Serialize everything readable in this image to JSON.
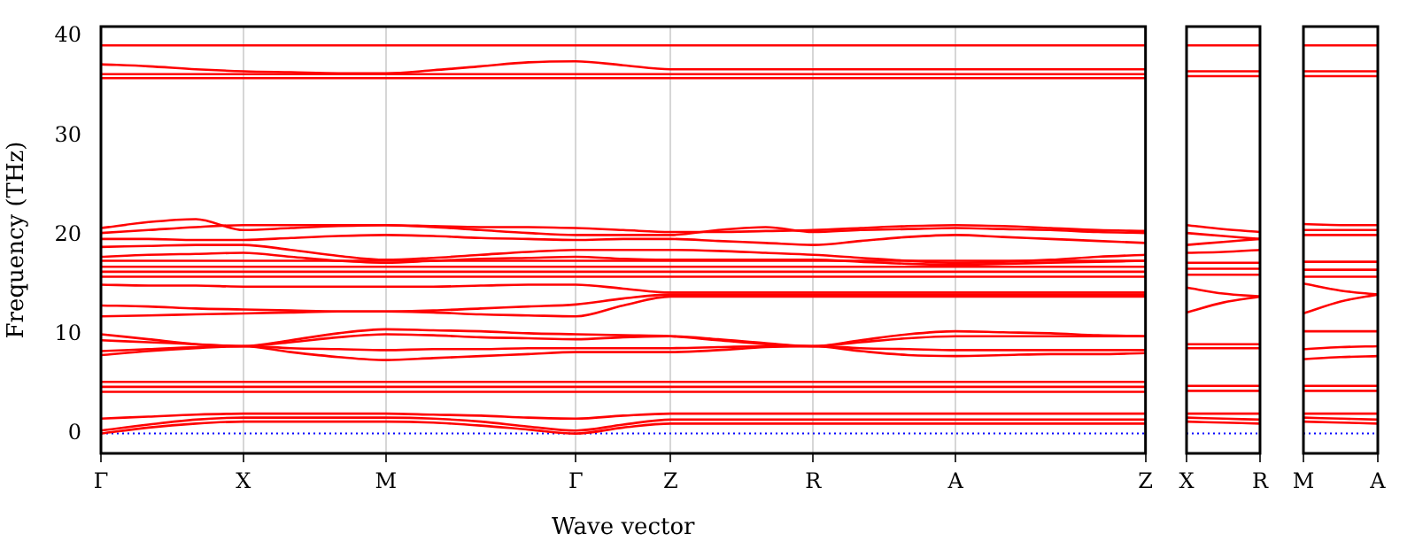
{
  "chart_data": [
    {
      "type": "line",
      "xlabel": "Wave vector",
      "ylabel": "Frequency (THz)",
      "marker": "none",
      "grid": "x",
      "categories": [
        "Γ",
        null,
        null,
        "X",
        null,
        null,
        "M",
        null,
        null,
        null,
        "Γ",
        null,
        "Z",
        null,
        null,
        "R",
        null,
        null,
        "A",
        null,
        null,
        null,
        "Z"
      ],
      "ylim": [
        -2,
        41
      ],
      "yticks": [
        0,
        10,
        20,
        30,
        40
      ],
      "ref_lines": [
        {
          "axis": "y",
          "value": 0,
          "color": "#0000ff",
          "line_style": "dotted"
        }
      ],
      "series": [
        {
          "color": "#ff0000",
          "values": [
            0,
            0.6,
            1.0,
            1.2,
            1.2,
            1.2,
            1.2,
            1.1,
            0.8,
            0.4,
            0,
            0.6,
            1.0,
            1.0,
            1.0,
            1.0,
            1.0,
            1.0,
            1.0,
            1.0,
            1.0,
            1.0,
            1.0
          ]
        },
        {
          "color": "#ff0000",
          "values": [
            0.3,
            0.9,
            1.4,
            1.6,
            1.6,
            1.6,
            1.6,
            1.5,
            1.2,
            0.7,
            0.3,
            0.9,
            1.4,
            1.4,
            1.4,
            1.4,
            1.4,
            1.4,
            1.4,
            1.4,
            1.4,
            1.4,
            1.4
          ]
        },
        {
          "color": "#ff0000",
          "values": [
            1.5,
            1.7,
            1.9,
            2.0,
            2.0,
            2.0,
            2.0,
            1.9,
            1.8,
            1.6,
            1.5,
            1.8,
            2.0,
            2.0,
            2.0,
            2.0,
            2.0,
            2.0,
            2.0,
            2.0,
            2.0,
            2.0,
            2.0
          ]
        },
        {
          "color": "#ff0000",
          "values": [
            4.2,
            4.2,
            4.2,
            4.2,
            4.2,
            4.2,
            4.2,
            4.2,
            4.2,
            4.2,
            4.2,
            4.2,
            4.2,
            4.2,
            4.2,
            4.2,
            4.2,
            4.2,
            4.2,
            4.2,
            4.2,
            4.2,
            4.2
          ]
        },
        {
          "color": "#ff0000",
          "values": [
            4.7,
            4.7,
            4.7,
            4.7,
            4.7,
            4.7,
            4.7,
            4.7,
            4.7,
            4.7,
            4.7,
            4.7,
            4.7,
            4.7,
            4.7,
            4.7,
            4.7,
            4.7,
            4.7,
            4.7,
            4.7,
            4.7,
            4.7
          ]
        },
        {
          "color": "#ff0000",
          "values": [
            5.2,
            5.2,
            5.2,
            5.2,
            5.2,
            5.2,
            5.2,
            5.2,
            5.2,
            5.2,
            5.2,
            5.2,
            5.2,
            5.2,
            5.2,
            5.2,
            5.2,
            5.2,
            5.2,
            5.2,
            5.2,
            5.2,
            5.2
          ]
        },
        {
          "color": "#ff0000",
          "values": [
            10.0,
            9.5,
            9.0,
            8.8,
            9.4,
            10.1,
            10.5,
            10.4,
            10.3,
            10.1,
            10.0,
            9.9,
            9.8,
            9.4,
            9.0,
            8.8,
            9.4,
            10.0,
            10.3,
            10.2,
            10.1,
            9.9,
            9.8
          ]
        },
        {
          "color": "#ff0000",
          "values": [
            9.4,
            9.2,
            9.0,
            8.8,
            9.2,
            9.7,
            10.0,
            9.9,
            9.7,
            9.6,
            9.5,
            9.7,
            9.8,
            9.5,
            9.1,
            8.8,
            9.2,
            9.6,
            9.8,
            9.8,
            9.8,
            9.8,
            9.8
          ]
        },
        {
          "color": "#ff0000",
          "values": [
            8.3,
            8.5,
            8.7,
            8.8,
            8.6,
            8.5,
            8.4,
            8.5,
            8.5,
            8.6,
            8.6,
            8.6,
            8.6,
            8.7,
            8.8,
            8.8,
            8.6,
            8.5,
            8.4,
            8.4,
            8.4,
            8.4,
            8.4
          ]
        },
        {
          "color": "#ff0000",
          "values": [
            7.9,
            8.3,
            8.6,
            8.8,
            8.2,
            7.7,
            7.4,
            7.6,
            7.8,
            8.0,
            8.2,
            8.2,
            8.2,
            8.4,
            8.7,
            8.8,
            8.3,
            7.9,
            7.8,
            7.9,
            8.0,
            8.0,
            8.1
          ]
        },
        {
          "color": "#ff0000",
          "values": [
            12.9,
            12.8,
            12.6,
            12.5,
            12.4,
            12.3,
            12.3,
            12.4,
            12.6,
            12.8,
            13.0,
            13.6,
            14.0,
            14.0,
            14.0,
            14.0,
            14.0,
            14.0,
            14.0,
            14.0,
            14.0,
            14.0,
            14.0
          ]
        },
        {
          "color": "#ff0000",
          "values": [
            11.8,
            11.9,
            12.0,
            12.1,
            12.2,
            12.3,
            12.3,
            12.2,
            12.0,
            11.9,
            11.8,
            12.9,
            13.8,
            13.8,
            13.8,
            13.8,
            13.8,
            13.8,
            13.8,
            13.8,
            13.8,
            13.8,
            13.8
          ]
        },
        {
          "color": "#ff0000",
          "values": [
            15.0,
            14.9,
            14.9,
            14.8,
            14.8,
            14.8,
            14.8,
            14.8,
            14.9,
            15.0,
            15.0,
            14.6,
            14.2,
            14.2,
            14.2,
            14.2,
            14.2,
            14.2,
            14.2,
            14.2,
            14.2,
            14.2,
            14.2
          ]
        },
        {
          "color": "#ff0000",
          "values": [
            15.8,
            15.8,
            15.8,
            15.8,
            15.8,
            15.8,
            15.8,
            15.8,
            15.8,
            15.8,
            15.8,
            15.8,
            15.8,
            15.8,
            15.8,
            15.8,
            15.8,
            15.8,
            15.8,
            15.8,
            15.8,
            15.8,
            15.8
          ]
        },
        {
          "color": "#ff0000",
          "values": [
            16.3,
            16.3,
            16.3,
            16.3,
            16.3,
            16.3,
            16.3,
            16.3,
            16.3,
            16.3,
            16.3,
            16.3,
            16.3,
            16.3,
            16.3,
            16.3,
            16.3,
            16.3,
            16.3,
            16.3,
            16.3,
            16.3,
            16.3
          ]
        },
        {
          "color": "#ff0000",
          "values": [
            16.8,
            16.8,
            16.8,
            16.8,
            16.8,
            16.8,
            16.8,
            16.8,
            16.8,
            16.8,
            16.8,
            16.8,
            16.8,
            16.8,
            16.8,
            16.8,
            16.8,
            16.8,
            16.8,
            16.8,
            16.8,
            16.8,
            16.8
          ]
        },
        {
          "color": "#ff0000",
          "values": [
            17.4,
            17.4,
            17.4,
            17.4,
            17.4,
            17.4,
            17.4,
            17.4,
            17.4,
            17.4,
            17.4,
            17.4,
            17.4,
            17.4,
            17.4,
            17.4,
            17.4,
            17.4,
            17.4,
            17.4,
            17.4,
            17.4,
            17.4
          ]
        },
        {
          "color": "#ff0000",
          "values": [
            20.7,
            21.3,
            21.6,
            20.5,
            20.7,
            20.9,
            21.0,
            20.9,
            20.8,
            20.8,
            20.7,
            20.5,
            20.3,
            20.3,
            20.4,
            20.5,
            20.7,
            20.9,
            21.0,
            20.9,
            20.7,
            20.5,
            20.4
          ]
        },
        {
          "color": "#ff0000",
          "values": [
            20.2,
            20.5,
            20.8,
            21.0,
            21.0,
            21.0,
            21.0,
            20.8,
            20.5,
            20.2,
            20.0,
            20.0,
            20.0,
            20.5,
            20.8,
            20.3,
            20.5,
            20.6,
            20.7,
            20.6,
            20.5,
            20.3,
            20.2
          ]
        },
        {
          "color": "#ff0000",
          "values": [
            19.6,
            19.6,
            19.5,
            19.5,
            19.7,
            19.9,
            20.0,
            19.9,
            19.7,
            19.6,
            19.5,
            19.6,
            19.6,
            19.4,
            19.2,
            19.0,
            19.4,
            19.8,
            20.0,
            19.8,
            19.6,
            19.4,
            19.2
          ]
        },
        {
          "color": "#ff0000",
          "values": [
            18.8,
            18.9,
            19.0,
            19.0,
            18.5,
            17.9,
            17.5,
            17.7,
            18.0,
            18.3,
            18.5,
            18.5,
            18.5,
            18.4,
            18.2,
            18.0,
            17.7,
            17.4,
            17.2,
            17.3,
            17.5,
            17.8,
            18.0
          ]
        },
        {
          "color": "#ff0000",
          "values": [
            17.8,
            18.0,
            18.1,
            18.2,
            17.8,
            17.4,
            17.2,
            17.4,
            17.6,
            17.7,
            17.8,
            17.6,
            17.5,
            17.5,
            17.5,
            17.5,
            17.3,
            17.1,
            17.0,
            17.1,
            17.2,
            17.3,
            17.4
          ]
        },
        {
          "color": "#ff0000",
          "values": [
            37.2,
            37.0,
            36.7,
            36.5,
            36.4,
            36.3,
            36.3,
            36.6,
            37.0,
            37.4,
            37.5,
            37.1,
            36.7,
            36.7,
            36.7,
            36.7,
            36.7,
            36.7,
            36.7,
            36.7,
            36.7,
            36.7,
            36.7
          ]
        },
        {
          "color": "#ff0000",
          "values": [
            36.2,
            36.2,
            36.2,
            36.2,
            36.2,
            36.2,
            36.2,
            36.2,
            36.2,
            36.2,
            36.2,
            36.2,
            36.2,
            36.2,
            36.2,
            36.2,
            36.2,
            36.2,
            36.2,
            36.2,
            36.2,
            36.2,
            36.2
          ]
        },
        {
          "color": "#ff0000",
          "values": [
            35.8,
            35.8,
            35.8,
            35.8,
            35.8,
            35.8,
            35.8,
            35.8,
            35.8,
            35.8,
            35.8,
            35.8,
            35.8,
            35.8,
            35.8,
            35.8,
            35.8,
            35.8,
            35.8,
            35.8,
            35.8,
            35.8,
            35.8
          ]
        },
        {
          "color": "#ff0000",
          "values": [
            39.1,
            39.1,
            39.1,
            39.1,
            39.1,
            39.1,
            39.1,
            39.1,
            39.1,
            39.1,
            39.1,
            39.1,
            39.1,
            39.1,
            39.1,
            39.1,
            39.1,
            39.1,
            39.1,
            39.1,
            39.1,
            39.1,
            39.1
          ]
        }
      ]
    },
    {
      "type": "line",
      "marker": "none",
      "tick_labels": "x",
      "categories": [
        "X",
        null,
        "R"
      ],
      "ylim": [
        -2,
        41
      ],
      "yticks": [
        0,
        10,
        20,
        30,
        40
      ],
      "ref_lines": [
        {
          "axis": "y",
          "value": 0,
          "color": "#0000ff",
          "line_style": "dotted"
        }
      ],
      "series": [
        {
          "color": "#ff0000",
          "values": [
            1.2,
            1.1,
            1.0
          ]
        },
        {
          "color": "#ff0000",
          "values": [
            1.6,
            1.5,
            1.4
          ]
        },
        {
          "color": "#ff0000",
          "values": [
            2.0,
            2.0,
            2.0
          ]
        },
        {
          "color": "#ff0000",
          "values": [
            4.3,
            4.3,
            4.3
          ]
        },
        {
          "color": "#ff0000",
          "values": [
            4.8,
            4.8,
            4.8
          ]
        },
        {
          "color": "#ff0000",
          "values": [
            8.6,
            8.6,
            8.6
          ]
        },
        {
          "color": "#ff0000",
          "values": [
            9.0,
            9.0,
            9.0
          ]
        },
        {
          "color": "#ff0000",
          "values": [
            12.2,
            13.2,
            13.8
          ]
        },
        {
          "color": "#ff0000",
          "values": [
            14.7,
            14.1,
            13.8
          ]
        },
        {
          "color": "#ff0000",
          "values": [
            16.0,
            16.0,
            16.0
          ]
        },
        {
          "color": "#ff0000",
          "values": [
            16.6,
            16.6,
            16.6
          ]
        },
        {
          "color": "#ff0000",
          "values": [
            17.2,
            17.2,
            17.2
          ]
        },
        {
          "color": "#ff0000",
          "values": [
            18.2,
            18.3,
            18.5
          ]
        },
        {
          "color": "#ff0000",
          "values": [
            19.0,
            19.3,
            19.6
          ]
        },
        {
          "color": "#ff0000",
          "values": [
            20.2,
            19.9,
            19.6
          ]
        },
        {
          "color": "#ff0000",
          "values": [
            21.0,
            20.6,
            20.3
          ]
        },
        {
          "color": "#ff0000",
          "values": [
            36.0,
            36.0,
            36.0
          ]
        },
        {
          "color": "#ff0000",
          "values": [
            36.5,
            36.5,
            36.5
          ]
        },
        {
          "color": "#ff0000",
          "values": [
            39.1,
            39.1,
            39.1
          ]
        }
      ]
    },
    {
      "type": "line",
      "marker": "none",
      "tick_labels": "x",
      "categories": [
        "M",
        null,
        "A"
      ],
      "ylim": [
        -2,
        41
      ],
      "yticks": [
        0,
        10,
        20,
        30,
        40
      ],
      "ref_lines": [
        {
          "axis": "y",
          "value": 0,
          "color": "#0000ff",
          "line_style": "dotted"
        }
      ],
      "series": [
        {
          "color": "#ff0000",
          "values": [
            1.2,
            1.1,
            1.0
          ]
        },
        {
          "color": "#ff0000",
          "values": [
            1.6,
            1.5,
            1.4
          ]
        },
        {
          "color": "#ff0000",
          "values": [
            2.0,
            2.0,
            2.0
          ]
        },
        {
          "color": "#ff0000",
          "values": [
            4.3,
            4.3,
            4.3
          ]
        },
        {
          "color": "#ff0000",
          "values": [
            4.8,
            4.8,
            4.8
          ]
        },
        {
          "color": "#ff0000",
          "values": [
            7.5,
            7.7,
            7.8
          ]
        },
        {
          "color": "#ff0000",
          "values": [
            8.5,
            8.7,
            8.8
          ]
        },
        {
          "color": "#ff0000",
          "values": [
            10.3,
            10.3,
            10.3
          ]
        },
        {
          "color": "#ff0000",
          "values": [
            12.1,
            13.3,
            14.0
          ]
        },
        {
          "color": "#ff0000",
          "values": [
            15.1,
            14.4,
            14.0
          ]
        },
        {
          "color": "#ff0000",
          "values": [
            15.8,
            15.8,
            15.8
          ]
        },
        {
          "color": "#ff0000",
          "values": [
            16.5,
            16.5,
            16.5
          ]
        },
        {
          "color": "#ff0000",
          "values": [
            17.3,
            17.3,
            17.3
          ]
        },
        {
          "color": "#ff0000",
          "values": [
            20.0,
            20.0,
            20.0
          ]
        },
        {
          "color": "#ff0000",
          "values": [
            20.5,
            20.5,
            20.5
          ]
        },
        {
          "color": "#ff0000",
          "values": [
            21.1,
            21.0,
            21.0
          ]
        },
        {
          "color": "#ff0000",
          "values": [
            36.0,
            36.0,
            36.0
          ]
        },
        {
          "color": "#ff0000",
          "values": [
            36.5,
            36.5,
            36.5
          ]
        },
        {
          "color": "#ff0000",
          "values": [
            39.1,
            39.1,
            39.1
          ]
        }
      ]
    }
  ]
}
